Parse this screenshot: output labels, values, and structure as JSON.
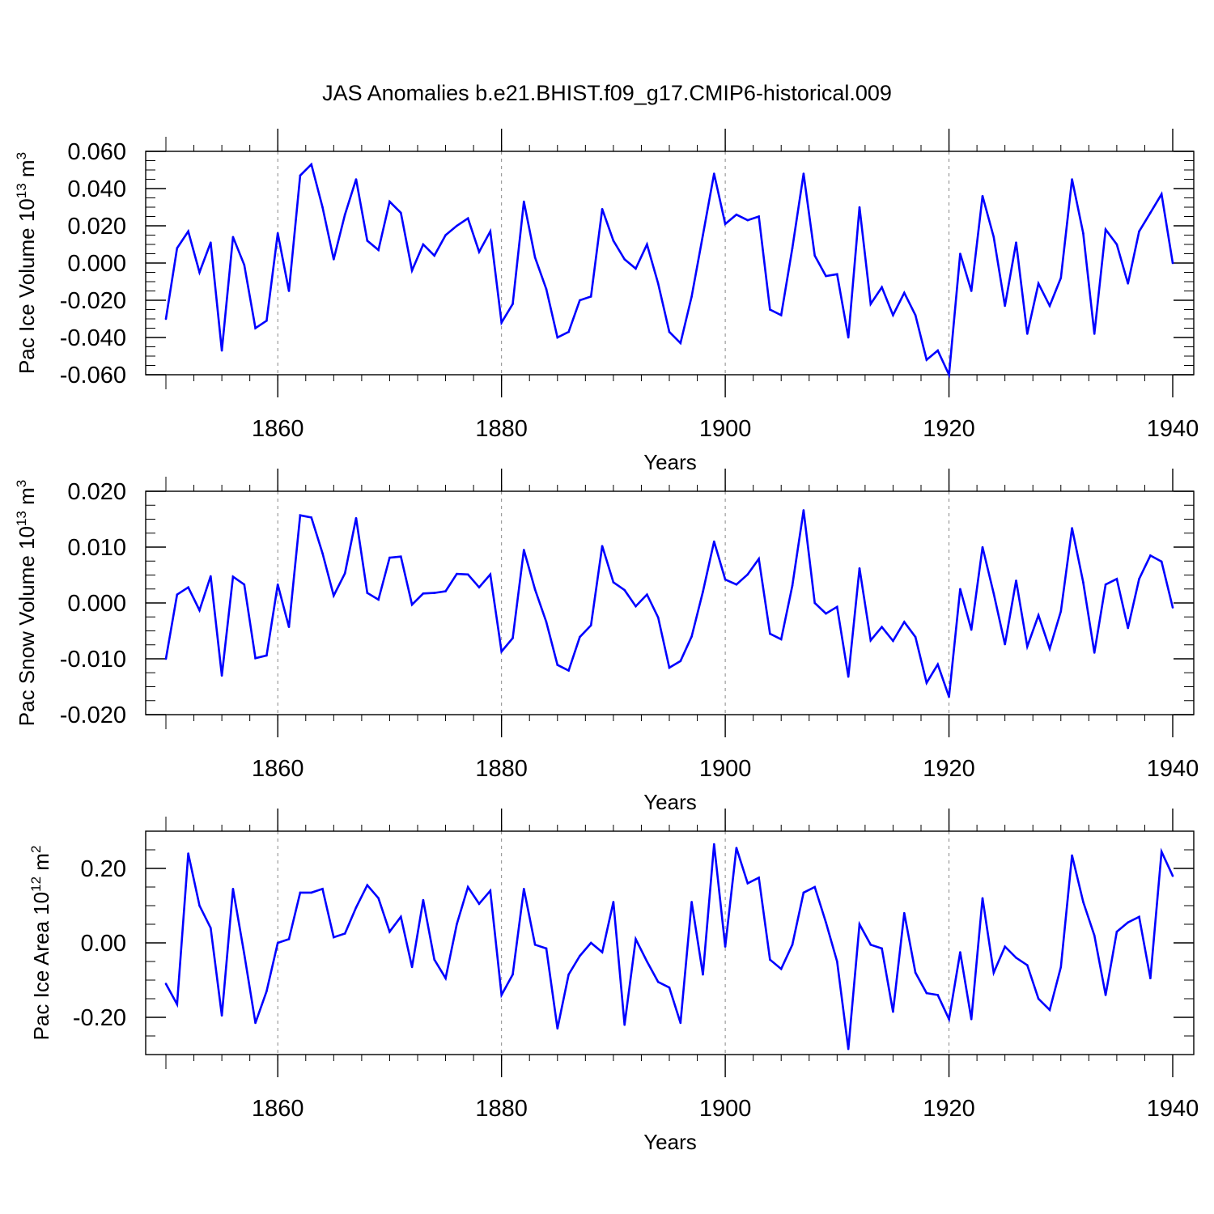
{
  "title": "JAS Anomalies b.e21.BHIST.f09_g17.CMIP6-historical.009",
  "colors": {
    "line": "#0000ff",
    "axis": "#000000",
    "grid": "#888888"
  },
  "chart_data": [
    {
      "type": "line",
      "ylabel": "Pac Ice Volume 10",
      "ylabel_exp": "13",
      "ylabel_unit": " m",
      "ylabel_unit_exp": "3",
      "xlabel": "Years",
      "xlim": [
        1850,
        1940
      ],
      "ylim": [
        -0.06,
        0.06
      ],
      "x_ticks": [
        1860,
        1880,
        1900,
        1920,
        1940
      ],
      "x_tick_labels": [
        "1860",
        "1880",
        "1900",
        "1920",
        "1940"
      ],
      "y_ticks": [
        -0.06,
        -0.04,
        -0.02,
        0,
        0.02,
        0.04,
        0.06
      ],
      "y_tick_labels": [
        "-0.060",
        "-0.040",
        "-0.020",
        "0.000",
        "0.020",
        "0.040",
        "0.060"
      ],
      "y_minor_step": 0.005,
      "series": [
        {
          "name": "Pac Ice Volume",
          "x_start": 1850,
          "values": [
            -0.03,
            0.008,
            0.017,
            -0.005,
            0.011,
            -0.047,
            0.014,
            -0.001,
            -0.035,
            -0.031,
            0.016,
            -0.015,
            0.047,
            0.053,
            0.03,
            0.002,
            0.026,
            0.045,
            0.012,
            0.007,
            0.033,
            0.027,
            -0.004,
            0.01,
            0.004,
            0.015,
            0.02,
            0.024,
            0.006,
            0.017,
            -0.032,
            -0.022,
            0.033,
            0.003,
            -0.014,
            -0.04,
            -0.037,
            -0.02,
            -0.018,
            0.029,
            0.012,
            0.002,
            -0.003,
            0.01,
            -0.011,
            -0.037,
            -0.043,
            -0.018,
            0.015,
            0.048,
            0.021,
            0.026,
            0.023,
            0.025,
            -0.025,
            -0.028,
            0.008,
            0.048,
            0.004,
            -0.007,
            -0.006,
            -0.04,
            0.03,
            -0.022,
            -0.013,
            -0.028,
            -0.016,
            -0.028,
            -0.052,
            -0.047,
            -0.06,
            0.005,
            -0.015,
            0.036,
            0.014,
            -0.023,
            0.011,
            -0.038,
            -0.011,
            -0.023,
            -0.008,
            0.045,
            0.016,
            -0.038,
            0.018,
            0.01,
            -0.011,
            0.017,
            0.027,
            0.037,
            0.0
          ]
        }
      ]
    },
    {
      "type": "line",
      "ylabel": "Pac Snow Volume 10",
      "ylabel_exp": "13",
      "ylabel_unit": " m",
      "ylabel_unit_exp": "3",
      "xlabel": "Years",
      "xlim": [
        1850,
        1940
      ],
      "ylim": [
        -0.02,
        0.02
      ],
      "x_ticks": [
        1860,
        1880,
        1900,
        1920,
        1940
      ],
      "x_tick_labels": [
        "1860",
        "1880",
        "1900",
        "1920",
        "1940"
      ],
      "y_ticks": [
        -0.02,
        -0.01,
        0,
        0.01,
        0.02
      ],
      "y_tick_labels": [
        "-0.020",
        "-0.010",
        "0.000",
        "0.010",
        "0.020"
      ],
      "y_minor_step": 0.0025,
      "series": [
        {
          "name": "Pac Snow Volume",
          "x_start": 1850,
          "values": [
            -0.01,
            0.0015,
            0.0028,
            -0.0013,
            0.0048,
            -0.013,
            0.0047,
            0.0033,
            -0.0099,
            -0.0094,
            0.0033,
            -0.0043,
            0.0157,
            0.0153,
            0.0089,
            0.0013,
            0.0053,
            0.0152,
            0.0018,
            0.0006,
            0.0081,
            0.0083,
            -0.0003,
            0.0017,
            0.0018,
            0.0021,
            0.0052,
            0.0051,
            0.0028,
            0.0051,
            -0.0087,
            -0.0063,
            0.0095,
            0.0024,
            -0.0034,
            -0.0111,
            -0.0121,
            -0.0061,
            -0.004,
            0.0102,
            0.0037,
            0.0023,
            -0.0006,
            0.0015,
            -0.0026,
            -0.0116,
            -0.0104,
            -0.006,
            0.002,
            0.011,
            0.0042,
            0.0033,
            0.0051,
            0.0079,
            -0.0055,
            -0.0065,
            0.0031,
            0.0166,
            0.0,
            -0.0019,
            -0.0007,
            -0.0132,
            0.0062,
            -0.0067,
            -0.0043,
            -0.0068,
            -0.0034,
            -0.0061,
            -0.0143,
            -0.011,
            -0.0168,
            0.0025,
            -0.0048,
            0.01,
            0.0017,
            -0.0074,
            0.004,
            -0.0078,
            -0.0022,
            -0.0082,
            -0.0015,
            0.0134,
            0.0037,
            -0.0089,
            0.0033,
            0.0043,
            -0.0045,
            0.0043,
            0.0085,
            0.0074,
            -0.0008
          ]
        }
      ]
    },
    {
      "type": "line",
      "ylabel": "Pac Ice Area 10",
      "ylabel_exp": "12",
      "ylabel_unit": " m",
      "ylabel_unit_exp": "2",
      "xlabel": "Years",
      "xlim": [
        1850,
        1940
      ],
      "ylim": [
        -0.3,
        0.3
      ],
      "x_ticks": [
        1860,
        1880,
        1900,
        1920,
        1940
      ],
      "x_tick_labels": [
        "1860",
        "1880",
        "1900",
        "1920",
        "1940"
      ],
      "y_ticks": [
        -0.2,
        0,
        0.2
      ],
      "y_tick_labels": [
        "-0.20",
        "0.00",
        "0.20"
      ],
      "y_minor_step": 0.05,
      "series": [
        {
          "name": "Pac Ice Area",
          "x_start": 1850,
          "values": [
            -0.11,
            -0.165,
            0.24,
            0.1,
            0.04,
            -0.195,
            0.145,
            -0.03,
            -0.215,
            -0.13,
            0.0,
            0.01,
            0.135,
            0.135,
            0.145,
            0.015,
            0.025,
            0.095,
            0.155,
            0.12,
            0.03,
            0.07,
            -0.065,
            0.115,
            -0.045,
            -0.095,
            0.05,
            0.15,
            0.105,
            0.14,
            -0.14,
            -0.085,
            0.145,
            -0.005,
            -0.015,
            -0.23,
            -0.085,
            -0.035,
            0.0,
            -0.025,
            0.11,
            -0.22,
            0.01,
            -0.05,
            -0.105,
            -0.12,
            -0.215,
            0.11,
            -0.085,
            0.265,
            -0.01,
            0.255,
            0.16,
            0.175,
            -0.045,
            -0.07,
            -0.005,
            0.135,
            0.15,
            0.055,
            -0.05,
            -0.285,
            0.05,
            -0.005,
            -0.015,
            -0.185,
            0.08,
            -0.08,
            -0.135,
            -0.14,
            -0.205,
            -0.025,
            -0.205,
            0.12,
            -0.08,
            -0.01,
            -0.04,
            -0.06,
            -0.15,
            -0.18,
            -0.065,
            0.235,
            0.11,
            0.02,
            -0.14,
            0.03,
            0.055,
            0.07,
            -0.095,
            0.245,
            0.18
          ]
        }
      ]
    }
  ]
}
